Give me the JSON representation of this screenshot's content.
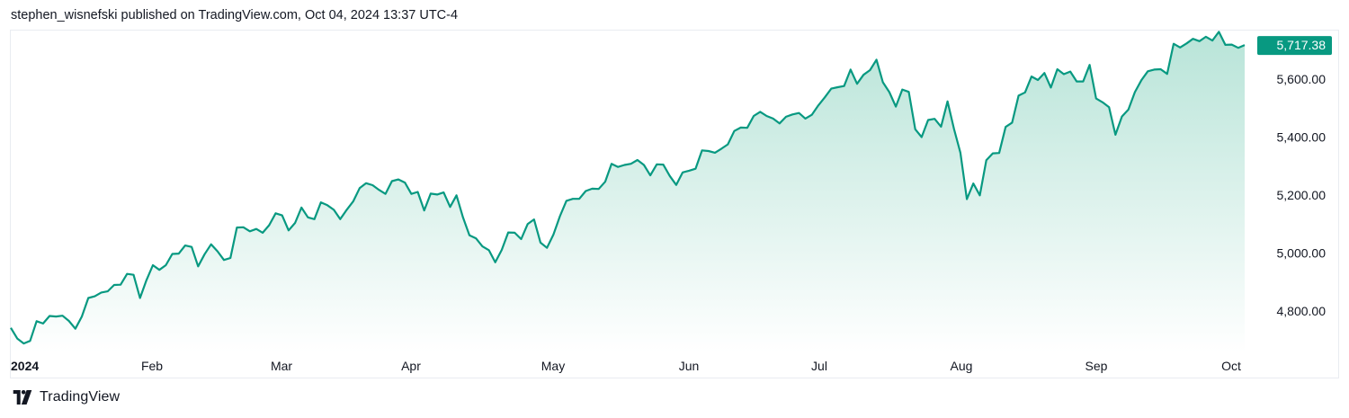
{
  "header": {
    "attribution": "stephen_wisnefski published on TradingView.com, Oct 04, 2024 13:37 UTC-4"
  },
  "footer": {
    "brand": "TradingView",
    "logo_icon": "tradingview-logo-icon"
  },
  "colors": {
    "line": "#089981",
    "last_price_bg": "#089981",
    "area_top": "#b8e4d8",
    "area_bottom": "#ffffff",
    "text": "#131722"
  },
  "chart_data": {
    "type": "area",
    "title": "",
    "xlabel": "",
    "ylabel": "",
    "grid": false,
    "ylim": [
      4690,
      5760
    ],
    "last_price_label": "5,717.38",
    "x_tick_labels": [
      "2024",
      "Feb",
      "Mar",
      "Apr",
      "May",
      "Jun",
      "Jul",
      "Aug",
      "Sep",
      "Oct"
    ],
    "y_tick_labels": [
      "5,600.00",
      "5,400.00",
      "5,200.00",
      "5,000.00",
      "4,800.00"
    ],
    "y_tick_values": [
      5600,
      5400,
      5200,
      5000,
      4800
    ],
    "series": [
      {
        "values": [
          4742,
          4705,
          4688,
          4697,
          4765,
          4757,
          4783,
          4781,
          4784,
          4766,
          4739,
          4781,
          4845,
          4851,
          4864,
          4868,
          4890,
          4891,
          4928,
          4925,
          4845,
          4906,
          4958,
          4942,
          4958,
          4997,
          4998,
          5026,
          5021,
          4954,
          4996,
          5030,
          5006,
          4976,
          4983,
          5088,
          5089,
          5075,
          5083,
          5070,
          5096,
          5137,
          5130,
          5078,
          5104,
          5157,
          5123,
          5117,
          5175,
          5165,
          5149,
          5117,
          5149,
          5178,
          5224,
          5241,
          5234,
          5218,
          5204,
          5248,
          5254,
          5243,
          5204,
          5211,
          5147,
          5205,
          5202,
          5209,
          5159,
          5199,
          5123,
          5061,
          5051,
          5023,
          5010,
          4968,
          5011,
          5071,
          5070,
          5048,
          5100,
          5116,
          5036,
          5018,
          5064,
          5127,
          5180,
          5187,
          5187,
          5214,
          5222,
          5221,
          5246,
          5308,
          5297,
          5304,
          5308,
          5321,
          5304,
          5268,
          5306,
          5305,
          5266,
          5235,
          5278,
          5284,
          5291,
          5354,
          5352,
          5346,
          5360,
          5375,
          5421,
          5433,
          5432,
          5473,
          5487,
          5473,
          5464,
          5447,
          5470,
          5478,
          5483,
          5464,
          5477,
          5509,
          5537,
          5567,
          5572,
          5576,
          5633,
          5584,
          5615,
          5631,
          5667,
          5589,
          5555,
          5505,
          5564,
          5556,
          5427,
          5400,
          5459,
          5463,
          5436,
          5523,
          5428,
          5346,
          5186,
          5240,
          5199,
          5320,
          5344,
          5345,
          5435,
          5450,
          5543,
          5554,
          5609,
          5597,
          5621,
          5571,
          5634,
          5617,
          5626,
          5592,
          5592,
          5649,
          5533,
          5520,
          5503,
          5408,
          5471,
          5495,
          5555,
          5596,
          5627,
          5633,
          5634,
          5618,
          5722,
          5709,
          5723,
          5739,
          5731,
          5746,
          5733,
          5763,
          5718,
          5719,
          5708,
          5717.38
        ]
      }
    ]
  }
}
